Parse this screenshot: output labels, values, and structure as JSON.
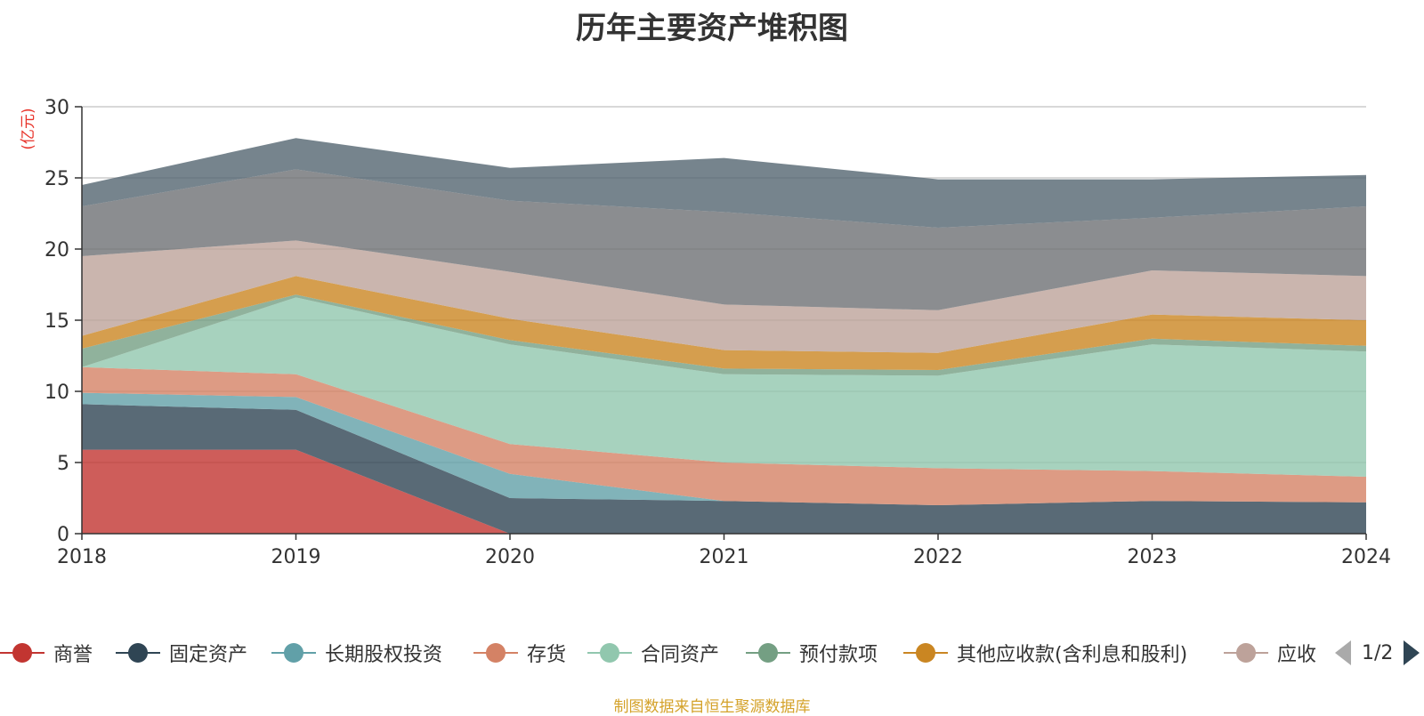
{
  "chart_data": {
    "type": "area",
    "stacked": true,
    "title": "历年主要资产堆积图",
    "ylabel": "(亿元)",
    "xlabel": "",
    "x": [
      "2018",
      "2019",
      "2020",
      "2021",
      "2022",
      "2023",
      "2024"
    ],
    "ylim": [
      0,
      30
    ],
    "yticks": [
      0,
      5,
      10,
      15,
      20,
      25,
      30
    ],
    "grid": true,
    "legend_position": "bottom",
    "series": [
      {
        "name": "商誉",
        "color": "#c23531",
        "values": [
          5.9,
          5.9,
          0,
          0,
          0,
          0,
          0
        ]
      },
      {
        "name": "固定资产",
        "color": "#2f4554",
        "values": [
          3.2,
          2.8,
          2.5,
          2.3,
          2.0,
          2.3,
          2.2
        ]
      },
      {
        "name": "长期股权投资",
        "color": "#61a0a8",
        "values": [
          0.8,
          0.9,
          1.7,
          0,
          0,
          0,
          0
        ]
      },
      {
        "name": "存货",
        "color": "#d48265",
        "values": [
          1.8,
          1.6,
          2.1,
          2.7,
          2.6,
          2.1,
          1.8
        ]
      },
      {
        "name": "合同资产",
        "color": "#91c7ae",
        "values": [
          0,
          5.4,
          7.0,
          6.2,
          6.5,
          8.9,
          8.8
        ]
      },
      {
        "name": "预付款项",
        "color": "#749f83",
        "values": [
          1.3,
          0.2,
          0.3,
          0.4,
          0.4,
          0.4,
          0.4
        ]
      },
      {
        "name": "其他应收款(含利息和股利)",
        "color": "#ca8622",
        "values": [
          0.9,
          1.3,
          1.5,
          1.3,
          1.2,
          1.7,
          1.8
        ]
      },
      {
        "name": "应收",
        "color": "#bda29a",
        "values": [
          5.6,
          2.5,
          3.3,
          3.2,
          3.0,
          3.1,
          3.1
        ]
      },
      {
        "name": "",
        "color": "#6e7074",
        "values": [
          3.5,
          5.0,
          5.0,
          6.5,
          5.8,
          3.7,
          4.9
        ]
      },
      {
        "name": "",
        "color": "#546570",
        "values": [
          1.5,
          2.2,
          2.3,
          3.8,
          3.4,
          2.7,
          2.2
        ]
      }
    ]
  },
  "legend": {
    "items": [
      "商誉",
      "固定资产",
      "长期股权投资",
      "存货",
      "合同资产",
      "预付款项",
      "其他应收款(含利息和股利)",
      "应收"
    ],
    "page": "1/2"
  },
  "source_note": "制图数据来自恒生聚源数据库"
}
